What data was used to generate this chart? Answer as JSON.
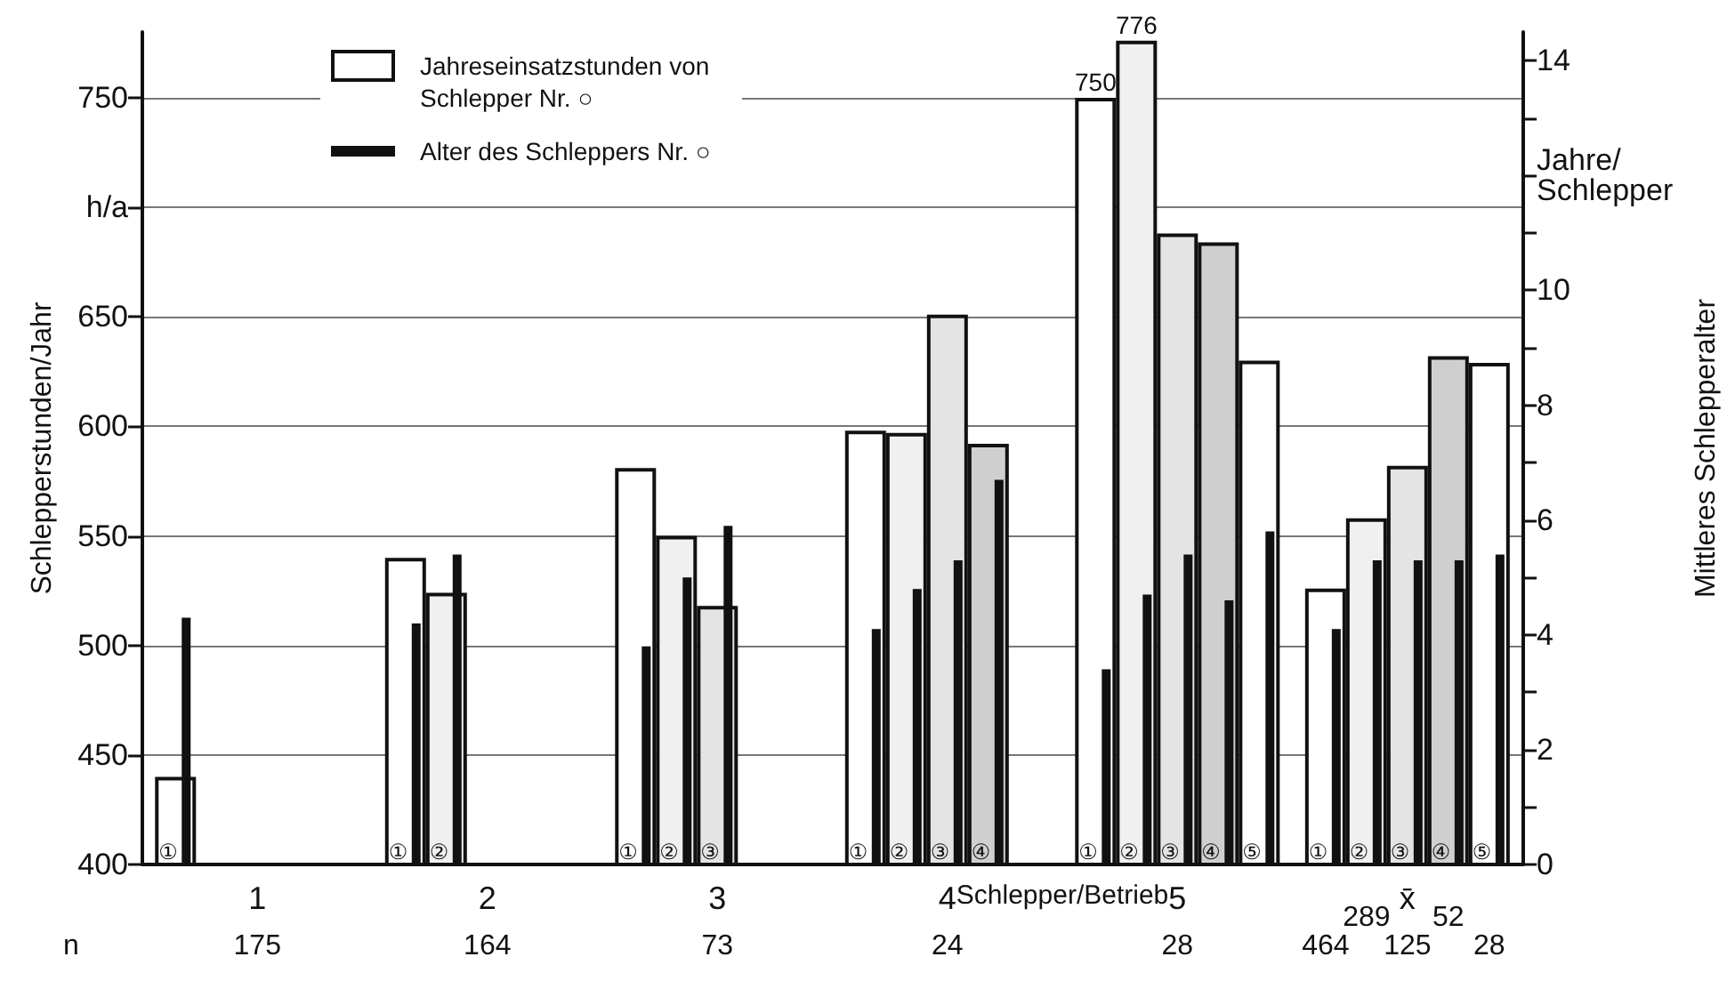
{
  "chart_data": {
    "type": "bar",
    "xlabel": "Schlepper/Betrieb",
    "ylabel": "Schlepperstunden/Jahr",
    "y2label": "Mittleres Schlepperalter",
    "categories": [
      "1",
      "2",
      "3",
      "4",
      "5",
      "x̄"
    ],
    "series": [
      {
        "name": "①",
        "color": "#ffffff",
        "values": [
          440,
          540,
          581,
          598,
          750,
          526
        ],
        "value_labels": [
          null,
          null,
          null,
          null,
          "750",
          null
        ]
      },
      {
        "name": "②",
        "color": "#f0f0f0",
        "values": [
          null,
          524,
          550,
          597,
          776,
          558
        ],
        "value_labels": [
          null,
          null,
          null,
          null,
          "776",
          null
        ]
      },
      {
        "name": "③",
        "color": "#e4e4e4",
        "values": [
          null,
          null,
          518,
          651,
          688,
          582
        ]
      },
      {
        "name": "④",
        "color": "#cfcfcf",
        "values": [
          null,
          null,
          null,
          592,
          684,
          632
        ]
      },
      {
        "name": "⑤",
        "color": "#ffffff",
        "values": [
          null,
          null,
          null,
          null,
          630,
          629
        ]
      },
      {
        "color": "#111111",
        "axis": "y2",
        "values": [
          4.3,
          4.2,
          3.8,
          4.1,
          3.4,
          4.1
        ]
      },
      {
        "color": "#111111",
        "axis": "y2",
        "values": [
          null,
          5.4,
          5.0,
          4.8,
          4.7,
          5.3
        ]
      },
      {
        "color": "#111111",
        "axis": "y2",
        "values": [
          null,
          null,
          5.9,
          5.3,
          5.4,
          5.3
        ]
      },
      {
        "color": "#111111",
        "axis": "y2",
        "values": [
          null,
          null,
          null,
          6.7,
          4.6,
          5.3
        ]
      },
      {
        "color": "#111111",
        "axis": "y2",
        "values": [
          null,
          null,
          null,
          null,
          5.8,
          5.4
        ]
      }
    ],
    "ylim": [
      400,
      780
    ],
    "yticks": [
      400,
      450,
      500,
      550,
      600,
      650,
      {
        "value": 700,
        "label": "h/a"
      },
      750
    ],
    "y2lim": [
      0,
      14.5
    ],
    "y2ticks": [
      0,
      {
        "value": 1,
        "label": null
      },
      2,
      {
        "value": 3,
        "label": null
      },
      4,
      {
        "value": 5,
        "label": null
      },
      6,
      {
        "value": 7,
        "label": null
      },
      8,
      {
        "value": 9,
        "label": null
      },
      10,
      {
        "value": 11,
        "label": null
      },
      {
        "value": 12,
        "label": "Jahre/ Schlepper"
      },
      {
        "value": 13,
        "label": null
      },
      14
    ],
    "grid": "y",
    "annotations": [
      "Jahreseinsatzstunden von Schlepper Nr. ○",
      "Alter des Schleppers Nr. ○",
      "n",
      "175",
      "164",
      "73",
      "24",
      "28",
      "464",
      "289",
      "125",
      "52",
      "28"
    ]
  }
}
